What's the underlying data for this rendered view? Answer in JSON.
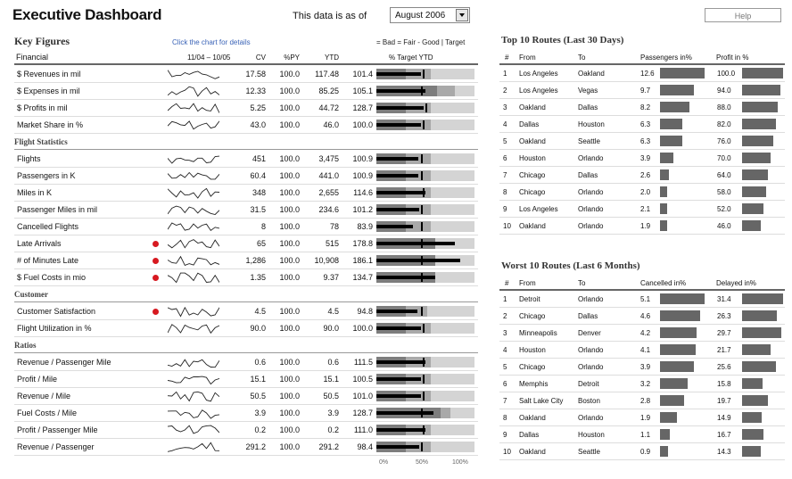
{
  "title": "Executive Dashboard",
  "as_of_label": "This data is as of",
  "as_of_value": "August 2006",
  "help_label": "Help",
  "key_figures": {
    "title": "Key Figures",
    "click_hint": "Click the chart for details",
    "legend": "= Bad = Fair - Good | Target",
    "col_period": "11/04 – 10/05",
    "col_cv": "CV",
    "col_py": "%PY",
    "col_ytd": "YTD",
    "col_target": "% Target YTD",
    "sections": [
      {
        "name": "Financial",
        "rows": [
          {
            "label": "$ Revenues in mil",
            "cv": "17.58",
            "py": "100.0",
            "ytd": "117.48",
            "pct": "101.4",
            "alert": false,
            "bar": 0.45,
            "target": 0.47,
            "bad": 0.3,
            "fair": 0.55
          },
          {
            "label": "$ Expenses in mil",
            "cv": "12.33",
            "py": "100.0",
            "ytd": "85.25",
            "pct": "105.1",
            "alert": false,
            "bar": 0.5,
            "target": 0.45,
            "bad": 0.62,
            "fair": 0.8
          },
          {
            "label": "$ Profits in mil",
            "cv": "5.25",
            "py": "100.0",
            "ytd": "44.72",
            "pct": "128.7",
            "alert": false,
            "bar": 0.48,
            "target": 0.5,
            "bad": 0.3,
            "fair": 0.55
          },
          {
            "label": "Market Share in %",
            "cv": "43.0",
            "py": "100.0",
            "ytd": "46.0",
            "pct": "100.0",
            "alert": false,
            "bar": 0.45,
            "target": 0.47,
            "bad": 0.3,
            "fair": 0.55
          }
        ]
      },
      {
        "name": "Flight Statistics",
        "rows": [
          {
            "label": "Flights",
            "cv": "451",
            "py": "100.0",
            "ytd": "3,475",
            "pct": "100.9",
            "alert": false,
            "bar": 0.43,
            "target": 0.45,
            "bad": 0.3,
            "fair": 0.55
          },
          {
            "label": "Passengers in K",
            "cv": "60.4",
            "py": "100.0",
            "ytd": "441.0",
            "pct": "100.9",
            "alert": false,
            "bar": 0.43,
            "target": 0.45,
            "bad": 0.3,
            "fair": 0.55
          },
          {
            "label": "Miles in K",
            "cv": "348",
            "py": "100.0",
            "ytd": "2,655",
            "pct": "114.6",
            "alert": false,
            "bar": 0.5,
            "target": 0.47,
            "bad": 0.3,
            "fair": 0.55
          },
          {
            "label": "Passenger Miles in mil",
            "cv": "31.5",
            "py": "100.0",
            "ytd": "234.6",
            "pct": "101.2",
            "alert": false,
            "bar": 0.44,
            "target": 0.45,
            "bad": 0.3,
            "fair": 0.55
          },
          {
            "label": "Cancelled Flights",
            "cv": "8",
            "py": "100.0",
            "ytd": "78",
            "pct": "83.9",
            "alert": false,
            "bar": 0.37,
            "target": 0.45,
            "bad": 0.3,
            "fair": 0.55
          },
          {
            "label": "Late Arrivals",
            "cv": "65",
            "py": "100.0",
            "ytd": "515",
            "pct": "178.8",
            "alert": true,
            "bar": 0.8,
            "target": 0.45,
            "bad": 0.6,
            "fair": 0.52
          },
          {
            "label": "# of Minutes Late",
            "cv": "1,286",
            "py": "100.0",
            "ytd": "10,908",
            "pct": "186.1",
            "alert": true,
            "bar": 0.85,
            "target": 0.45,
            "bad": 0.6,
            "fair": 0.52
          },
          {
            "label": "$ Fuel Costs in mio",
            "cv": "1.35",
            "py": "100.0",
            "ytd": "9.37",
            "pct": "134.7",
            "alert": true,
            "bar": 0.6,
            "target": 0.45,
            "bad": 0.6,
            "fair": 0.52
          }
        ]
      },
      {
        "name": "Customer",
        "rows": [
          {
            "label": "Customer Satisfaction",
            "cv": "4.5",
            "py": "100.0",
            "ytd": "4.5",
            "pct": "94.8",
            "alert": true,
            "bar": 0.42,
            "target": 0.45,
            "bad": 0.3,
            "fair": 0.52
          },
          {
            "label": "Flight Utilization in %",
            "cv": "90.0",
            "py": "100.0",
            "ytd": "90.0",
            "pct": "100.0",
            "alert": false,
            "bar": 0.45,
            "target": 0.47,
            "bad": 0.3,
            "fair": 0.55
          }
        ]
      },
      {
        "name": "Ratios",
        "rows": [
          {
            "label": "Revenue / Passenger Mile",
            "cv": "0.6",
            "py": "100.0",
            "ytd": "0.6",
            "pct": "111.5",
            "alert": false,
            "bar": 0.5,
            "target": 0.47,
            "bad": 0.3,
            "fair": 0.55
          },
          {
            "label": "Profit / Mile",
            "cv": "15.1",
            "py": "100.0",
            "ytd": "15.1",
            "pct": "100.5",
            "alert": false,
            "bar": 0.45,
            "target": 0.47,
            "bad": 0.3,
            "fair": 0.55
          },
          {
            "label": "Revenue / Mile",
            "cv": "50.5",
            "py": "100.0",
            "ytd": "50.5",
            "pct": "101.0",
            "alert": false,
            "bar": 0.45,
            "target": 0.47,
            "bad": 0.3,
            "fair": 0.55
          },
          {
            "label": "Fuel Costs / Mile",
            "cv": "3.9",
            "py": "100.0",
            "ytd": "3.9",
            "pct": "128.7",
            "alert": false,
            "bar": 0.58,
            "target": 0.45,
            "bad": 0.65,
            "fair": 0.75
          },
          {
            "label": "Profit / Passenger Mile",
            "cv": "0.2",
            "py": "100.0",
            "ytd": "0.2",
            "pct": "111.0",
            "alert": false,
            "bar": 0.5,
            "target": 0.47,
            "bad": 0.3,
            "fair": 0.55
          },
          {
            "label": "Revenue / Passenger",
            "cv": "291.2",
            "py": "100.0",
            "ytd": "291.2",
            "pct": "98.4",
            "alert": false,
            "bar": 0.44,
            "target": 0.45,
            "bad": 0.3,
            "fair": 0.55
          }
        ]
      }
    ]
  },
  "top_routes": {
    "title": "Top 10 Routes (Last 30 Days)",
    "headers": [
      "#",
      "From",
      "To",
      "Passengers in%",
      "Profit in %"
    ],
    "rows": [
      {
        "n": "1",
        "from": "Los Angeles",
        "to": "Oakland",
        "v1": "12.6",
        "v2": "100.0"
      },
      {
        "n": "2",
        "from": "Los Angeles",
        "to": "Vegas",
        "v1": "9.7",
        "v2": "94.0"
      },
      {
        "n": "3",
        "from": "Oakland",
        "to": "Dallas",
        "v1": "8.2",
        "v2": "88.0"
      },
      {
        "n": "4",
        "from": "Dallas",
        "to": "Houston",
        "v1": "6.3",
        "v2": "82.0"
      },
      {
        "n": "5",
        "from": "Oakland",
        "to": "Seattle",
        "v1": "6.3",
        "v2": "76.0"
      },
      {
        "n": "6",
        "from": "Houston",
        "to": "Orlando",
        "v1": "3.9",
        "v2": "70.0"
      },
      {
        "n": "7",
        "from": "Chicago",
        "to": "Dallas",
        "v1": "2.6",
        "v2": "64.0"
      },
      {
        "n": "8",
        "from": "Chicago",
        "to": "Orlando",
        "v1": "2.0",
        "v2": "58.0"
      },
      {
        "n": "9",
        "from": "Los Angeles",
        "to": "Orlando",
        "v1": "2.1",
        "v2": "52.0"
      },
      {
        "n": "10",
        "from": "Oakland",
        "to": "Orlando",
        "v1": "1.9",
        "v2": "46.0"
      }
    ]
  },
  "worst_routes": {
    "title": "Worst 10 Routes (Last 6 Months)",
    "headers": [
      "#",
      "From",
      "To",
      "Cancelled in%",
      "Delayed in%"
    ],
    "rows": [
      {
        "n": "1",
        "from": "Detroit",
        "to": "Orlando",
        "v1": "5.1",
        "v2": "31.4"
      },
      {
        "n": "2",
        "from": "Chicago",
        "to": "Dallas",
        "v1": "4.6",
        "v2": "26.3"
      },
      {
        "n": "3",
        "from": "Minneapolis",
        "to": "Denver",
        "v1": "4.2",
        "v2": "29.7"
      },
      {
        "n": "4",
        "from": "Houston",
        "to": "Orlando",
        "v1": "4.1",
        "v2": "21.7"
      },
      {
        "n": "5",
        "from": "Chicago",
        "to": "Orlando",
        "v1": "3.9",
        "v2": "25.6"
      },
      {
        "n": "6",
        "from": "Memphis",
        "to": "Detroit",
        "v1": "3.2",
        "v2": "15.8"
      },
      {
        "n": "7",
        "from": "Salt Lake City",
        "to": "Boston",
        "v1": "2.8",
        "v2": "19.7"
      },
      {
        "n": "8",
        "from": "Oakland",
        "to": "Orlando",
        "v1": "1.9",
        "v2": "14.9"
      },
      {
        "n": "9",
        "from": "Dallas",
        "to": "Houston",
        "v1": "1.1",
        "v2": "16.7"
      },
      {
        "n": "10",
        "from": "Oakland",
        "to": "Seattle",
        "v1": "0.9",
        "v2": "14.3"
      }
    ]
  },
  "axis_ticks": [
    "0%",
    "50%",
    "100%"
  ],
  "colors": {
    "alert": "#d71920",
    "bar": "#666666",
    "link": "#3a63b7"
  }
}
